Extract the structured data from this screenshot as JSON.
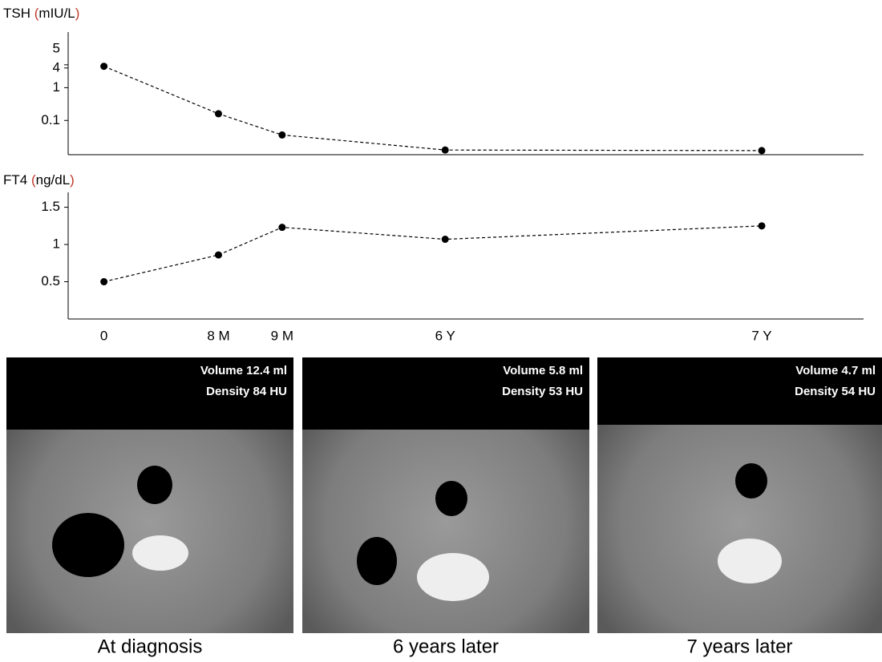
{
  "chart_data": [
    {
      "type": "line",
      "title": "TSH (mIU/L)",
      "log_scale": true,
      "series": [
        {
          "color": "#000000",
          "values": [
            4.5,
            0.16,
            0.036,
            0.0125,
            0.012
          ]
        }
      ],
      "ylim": [
        0.009,
        50
      ],
      "yticks": [
        0.1,
        1,
        4,
        5
      ],
      "line_style": "dashed"
    },
    {
      "type": "line",
      "title": "FT4 (ng/dL)",
      "log_scale": false,
      "categories": [
        "0",
        "8 M",
        "9 M",
        "6 Y",
        "7 Y"
      ],
      "series": [
        {
          "color": "#000000",
          "values": [
            0.5,
            0.86,
            1.23,
            1.07,
            1.25
          ]
        }
      ],
      "ylim": [
        0,
        1.7
      ],
      "yticks": [
        0.5,
        1,
        1.5
      ],
      "line_style": "dashed"
    }
  ],
  "images": [
    {
      "volume": "Volume 12.4 ml",
      "density": "Density 84 HU",
      "caption": "At diagnosis"
    },
    {
      "volume": "Volume 5.8 ml",
      "density": "Density 53 HU",
      "caption": "6 years later"
    },
    {
      "volume": "Volume 4.7 ml",
      "density": "Density 54 HU",
      "caption": "7 years later"
    }
  ]
}
